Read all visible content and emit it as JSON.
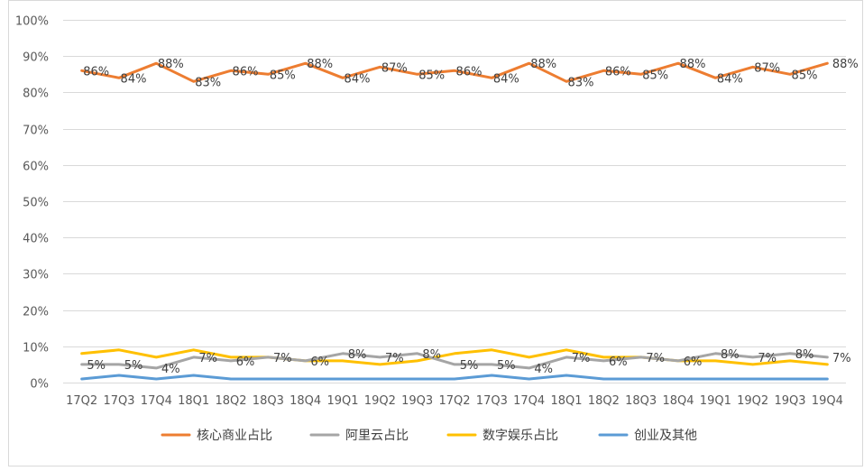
{
  "chart_data": {
    "type": "line",
    "categories": [
      "17Q2",
      "17Q3",
      "17Q4",
      "18Q1",
      "18Q2",
      "18Q3",
      "18Q4",
      "19Q1",
      "19Q2",
      "19Q3",
      "17Q2",
      "17Q3",
      "17Q4",
      "18Q1",
      "18Q2",
      "18Q3",
      "18Q4",
      "19Q1",
      "19Q2",
      "19Q3",
      "19Q4"
    ],
    "ylim": [
      0,
      100
    ],
    "yticks": [
      0,
      10,
      20,
      30,
      40,
      50,
      60,
      70,
      80,
      90,
      100
    ],
    "ytick_labels": [
      "0%",
      "10%",
      "20%",
      "30%",
      "40%",
      "50%",
      "60%",
      "70%",
      "80%",
      "90%",
      "100%"
    ],
    "grid": true,
    "legend": "bottom",
    "series": [
      {
        "name": "核心商业占比",
        "color": "#ED7D31",
        "values": [
          86,
          84,
          88,
          83,
          86,
          85,
          88,
          84,
          87,
          85,
          86,
          84,
          88,
          83,
          86,
          85,
          88,
          84,
          87,
          85,
          88
        ],
        "labels": [
          "86%",
          "84%",
          "88%",
          "83%",
          "86%",
          "85%",
          "88%",
          "84%",
          "87%",
          "85%",
          "86%",
          "84%",
          "88%",
          "83%",
          "86%",
          "85%",
          "88%",
          "84%",
          "87%",
          "85%",
          "88%"
        ]
      },
      {
        "name": "阿里云占比",
        "color": "#A5A5A5",
        "values": [
          5,
          5,
          4,
          7,
          6,
          7,
          6,
          8,
          7,
          8,
          5,
          5,
          4,
          7,
          6,
          7,
          6,
          8,
          7,
          8,
          7
        ],
        "labels": [
          "5%",
          "5%",
          "4%",
          "7%",
          "6%",
          "7%",
          "6%",
          "8%",
          "7%",
          "8%",
          "5%",
          "5%",
          "4%",
          "7%",
          "6%",
          "7%",
          "6%",
          "8%",
          "7%",
          "8%",
          "7%"
        ]
      },
      {
        "name": "数字娱乐占比",
        "color": "#FFC000",
        "values": [
          8,
          9,
          7,
          9,
          7,
          7,
          6,
          6,
          5,
          6,
          8,
          9,
          7,
          9,
          7,
          7,
          6,
          6,
          5,
          6,
          5
        ],
        "labels": []
      },
      {
        "name": "创业及其他",
        "color": "#5B9BD5",
        "values": [
          1,
          2,
          1,
          2,
          1,
          1,
          1,
          1,
          1,
          1,
          1,
          2,
          1,
          2,
          1,
          1,
          1,
          1,
          1,
          1,
          1
        ],
        "labels": []
      }
    ]
  }
}
